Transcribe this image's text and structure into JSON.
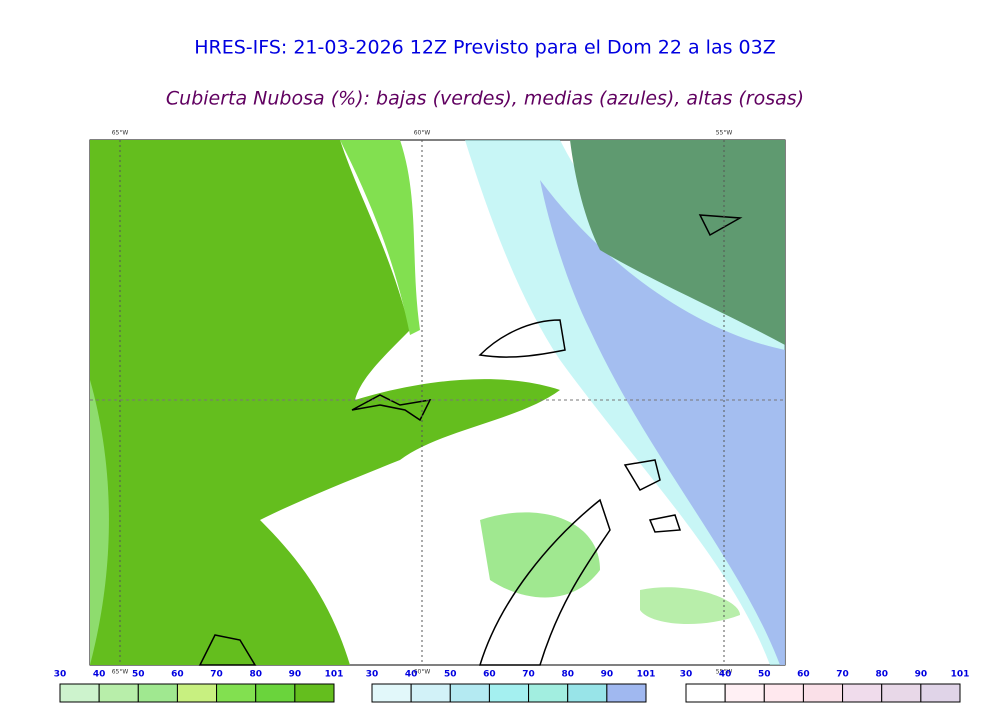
{
  "header": {
    "title": "HRES-IFS: 21-03-2026 12Z Previsto para el Dom 22 a las 03Z",
    "subtitle": "Cubierta Nubosa (%): bajas (verdes), medias (azules), altas (rosas)"
  },
  "map": {
    "lon_labels": [
      "65°W",
      "60°W",
      "55°W"
    ]
  },
  "legends": [
    {
      "ticks": [
        30,
        40,
        50,
        60,
        70,
        80,
        90,
        101
      ],
      "colors": [
        "#cdf3cd",
        "#b8eeaa",
        "#a0e890",
        "#c8f080",
        "#82e050",
        "#6ad43c",
        "#64be1e"
      ]
    },
    {
      "ticks": [
        30,
        40,
        50,
        60,
        70,
        80,
        90,
        101
      ],
      "colors": [
        "#e2f8fa",
        "#d2f2f8",
        "#b4eaf2",
        "#a4f0f0",
        "#a2eee0",
        "#98e4e8",
        "#a0b8f0"
      ]
    },
    {
      "ticks": [
        30,
        40,
        50,
        60,
        70,
        80,
        90,
        101
      ],
      "colors": [
        "#ffffff",
        "#fff0f4",
        "#ffe8ee",
        "#fae0e8",
        "#f0dcec",
        "#e8d8e8",
        "#e0d4e8"
      ]
    }
  ]
}
